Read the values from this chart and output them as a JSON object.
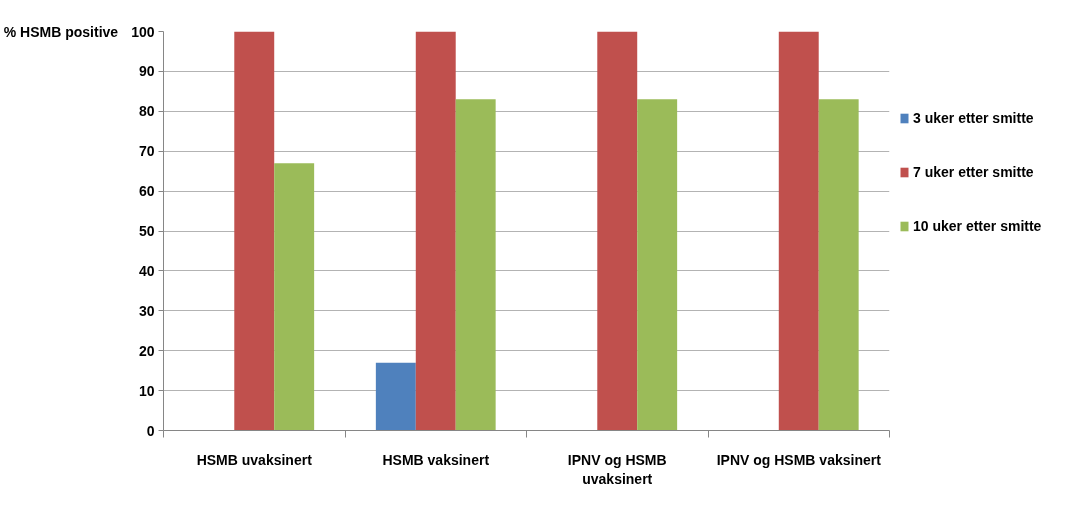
{
  "chart_data": {
    "type": "bar",
    "ylabel": "% HSMB positive",
    "categories": [
      "HSMB uvaksinert",
      "HSMB vaksinert",
      "IPNV og HSMB uvaksinert",
      "IPNV og HSMB vaksinert"
    ],
    "series": [
      {
        "name": "3 uker etter smitte",
        "color": "#4f81bd",
        "values": [
          0,
          17,
          0,
          0
        ]
      },
      {
        "name": "7 uker etter smitte",
        "color": "#c0504d",
        "values": [
          100,
          100,
          100,
          100
        ]
      },
      {
        "name": "10 uker etter smitte",
        "color": "#9bbb59",
        "values": [
          67,
          83,
          83,
          83
        ]
      }
    ],
    "ylim": [
      0,
      100
    ],
    "yticks": [
      0,
      10,
      20,
      30,
      40,
      50,
      60,
      70,
      80,
      90,
      100
    ],
    "grid": "y",
    "legend": "right"
  }
}
